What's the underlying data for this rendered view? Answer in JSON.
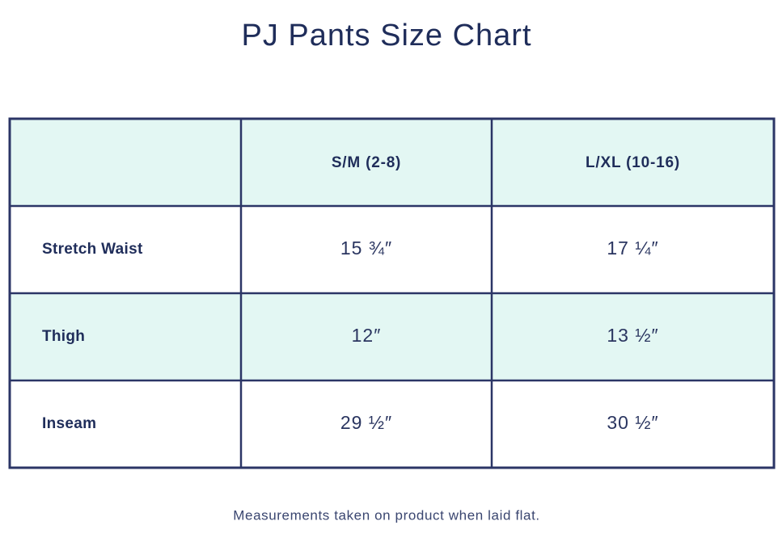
{
  "title": "PJ Pants Size Chart",
  "table": {
    "columns": [
      "S/M (2-8)",
      "L/XL (10-16)"
    ],
    "rows": [
      [
        "Stretch Waist",
        "15 ¾″",
        "17 ¼″"
      ],
      [
        "Thigh",
        "12″",
        "13 ½″"
      ],
      [
        "Inseam",
        "29 ½″",
        "30 ½″"
      ]
    ]
  },
  "footnote": "Measurements taken on product when laid flat."
}
